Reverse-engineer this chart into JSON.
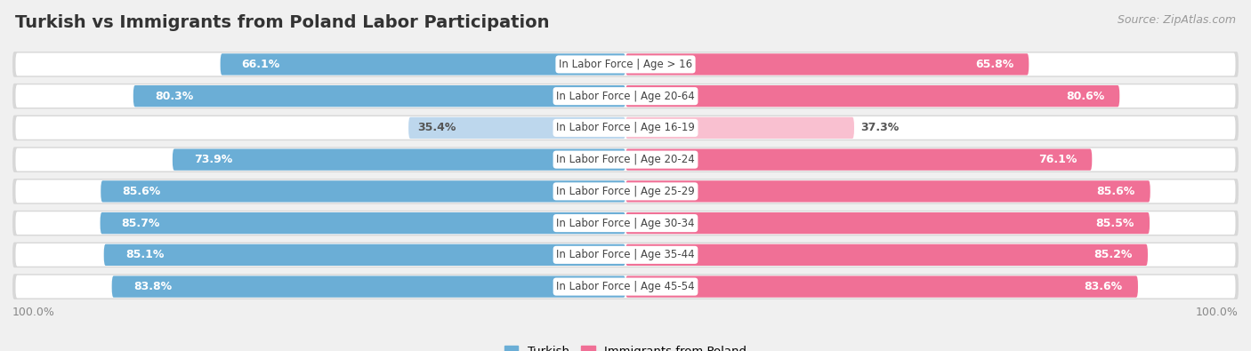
{
  "title": "Turkish vs Immigrants from Poland Labor Participation",
  "source": "Source: ZipAtlas.com",
  "categories": [
    "In Labor Force | Age > 16",
    "In Labor Force | Age 20-64",
    "In Labor Force | Age 16-19",
    "In Labor Force | Age 20-24",
    "In Labor Force | Age 25-29",
    "In Labor Force | Age 30-34",
    "In Labor Force | Age 35-44",
    "In Labor Force | Age 45-54"
  ],
  "turkish_values": [
    66.1,
    80.3,
    35.4,
    73.9,
    85.6,
    85.7,
    85.1,
    83.8
  ],
  "poland_values": [
    65.8,
    80.6,
    37.3,
    76.1,
    85.6,
    85.5,
    85.2,
    83.6
  ],
  "turkish_color": "#6baed6",
  "turkish_color_light": "#bdd7ed",
  "poland_color": "#f07096",
  "poland_color_light": "#f9c0d0",
  "bar_height": 0.68,
  "background_color": "#f0f0f0",
  "row_bg_color": "#e8e8e8",
  "row_inner_bg": "#ffffff",
  "label_color_dark": "#555555",
  "title_fontsize": 14,
  "source_fontsize": 9,
  "bar_label_fontsize": 9,
  "category_fontsize": 8.5,
  "legend_fontsize": 9.5,
  "footer_fontsize": 9
}
